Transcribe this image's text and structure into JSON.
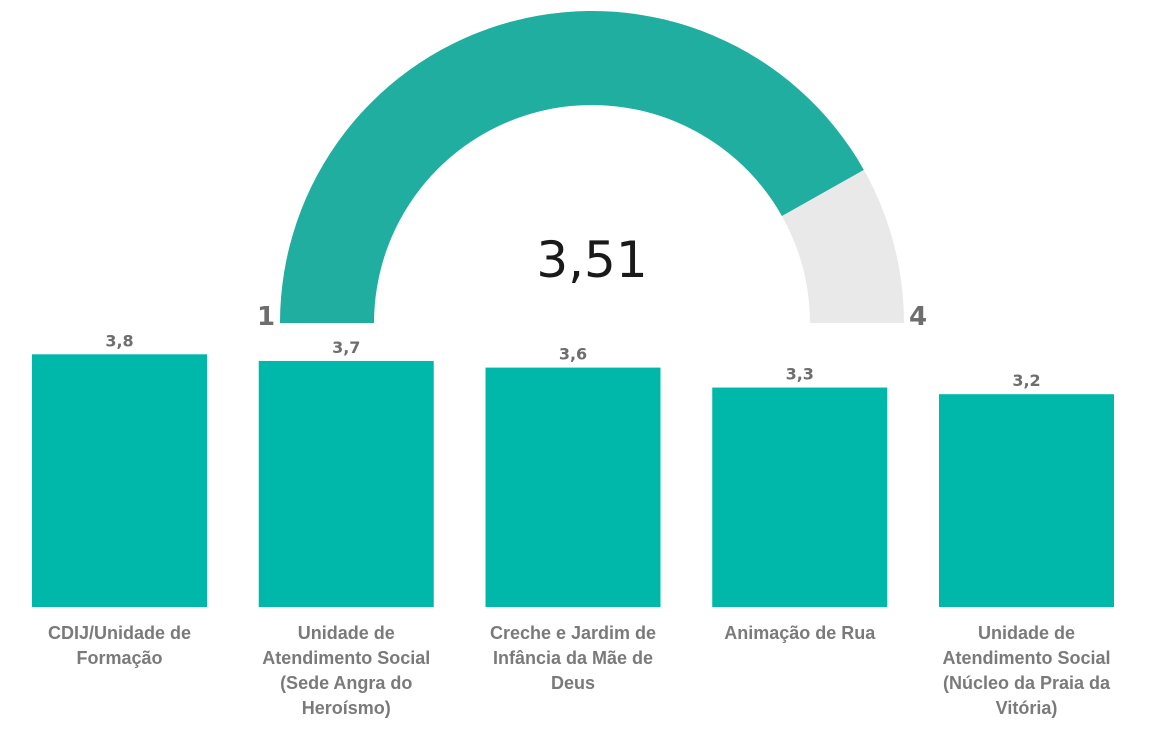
{
  "gauge": {
    "value": 3.51,
    "value_label": "3,51",
    "min": 1,
    "max": 4,
    "min_label": "1",
    "max_label": "4",
    "fill_color": "#1fae9f",
    "track_color": "#e9e9e9"
  },
  "chart_data": {
    "type": "bar",
    "categories": [
      "CDIJ/Unidade de Formação",
      "Unidade de Atendimento Social (Sede Angra do Heroísmo)",
      "Creche e Jardim de Infância da Mãe de Deus",
      "Animação de Rua",
      "Unidade de Atendimento Social (Núcleo da Praia da Vitória)"
    ],
    "values": [
      3.8,
      3.7,
      3.6,
      3.3,
      3.2
    ],
    "value_labels": [
      "3,8",
      "3,7",
      "3,6",
      "3,3",
      "3,2"
    ],
    "bar_color": "#00b8a9",
    "title": "",
    "xlabel": "",
    "ylabel": ""
  }
}
